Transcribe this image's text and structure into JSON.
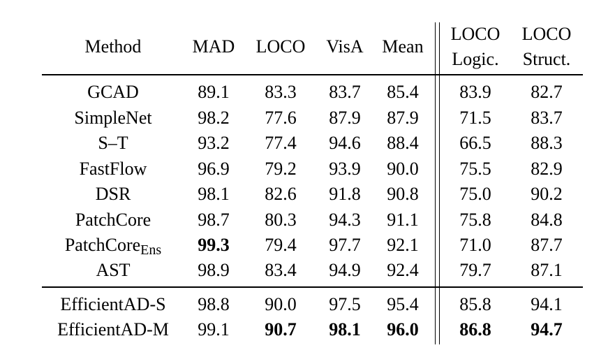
{
  "header": {
    "method": "Method",
    "mad": "MAD",
    "loco": "LOCO",
    "visa": "VisA",
    "mean": "Mean",
    "loco_logic_top": "LOCO",
    "loco_logic_bottom": "Logic.",
    "loco_struct_top": "LOCO",
    "loco_struct_bottom": "Struct."
  },
  "rows": [
    {
      "method": "GCAD",
      "mad": "89.1",
      "loco": "83.3",
      "visa": "83.7",
      "mean": "85.4",
      "logic": "83.9",
      "struct": "82.7"
    },
    {
      "method": "SimpleNet",
      "mad": "98.2",
      "loco": "77.6",
      "visa": "87.9",
      "mean": "87.9",
      "logic": "71.5",
      "struct": "83.7"
    },
    {
      "method": "S–T",
      "mad": "93.2",
      "loco": "77.4",
      "visa": "94.6",
      "mean": "88.4",
      "logic": "66.5",
      "struct": "88.3"
    },
    {
      "method": "FastFlow",
      "mad": "96.9",
      "loco": "79.2",
      "visa": "93.9",
      "mean": "90.0",
      "logic": "75.5",
      "struct": "82.9"
    },
    {
      "method": "DSR",
      "mad": "98.1",
      "loco": "82.6",
      "visa": "91.8",
      "mean": "90.8",
      "logic": "75.0",
      "struct": "90.2"
    },
    {
      "method": "PatchCore",
      "mad": "98.7",
      "loco": "80.3",
      "visa": "94.3",
      "mean": "91.1",
      "logic": "75.8",
      "struct": "84.8"
    },
    {
      "method": "PatchCore",
      "method_sub": "Ens",
      "mad": "99.3",
      "loco": "79.4",
      "visa": "97.7",
      "mean": "92.1",
      "logic": "71.0",
      "struct": "87.7"
    },
    {
      "method": "AST",
      "mad": "98.9",
      "loco": "83.4",
      "visa": "94.9",
      "mean": "92.4",
      "logic": "79.7",
      "struct": "87.1"
    },
    {
      "method": "EfficientAD-S",
      "mad": "98.8",
      "loco": "90.0",
      "visa": "97.5",
      "mean": "95.4",
      "logic": "85.8",
      "struct": "94.1"
    },
    {
      "method": "EfficientAD-M",
      "mad": "99.1",
      "loco": "90.7",
      "visa": "98.1",
      "mean": "96.0",
      "logic": "86.8",
      "struct": "94.7"
    }
  ]
}
